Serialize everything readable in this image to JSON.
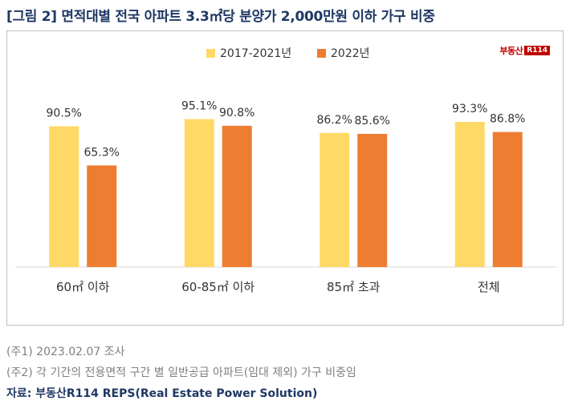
{
  "title": "[그림 2] 면적대별 전국 아파트 3.3㎡당 분양가 2,000만원 이하 가구 비중",
  "logo": {
    "text": "부동산",
    "badge": "R114"
  },
  "chart_data": {
    "type": "bar",
    "categories": [
      "60㎡ 이하",
      "60-85㎡ 이하",
      "85㎡ 초과",
      "전체"
    ],
    "series": [
      {
        "name": "2017-2021년",
        "values": [
          90.5,
          95.1,
          86.2,
          93.3
        ],
        "labels": [
          "90.5%",
          "95.1%",
          "86.2%",
          "93.3%"
        ],
        "color": "#FFD966"
      },
      {
        "name": "2022년",
        "values": [
          65.3,
          90.8,
          85.6,
          86.8
        ],
        "labels": [
          "65.3%",
          "90.8%",
          "85.6%",
          "86.8%"
        ],
        "color": "#ED7D31"
      }
    ],
    "ylim": [
      0,
      100
    ],
    "grid": false,
    "legend": "top-center"
  },
  "notes": [
    "(주1) 2023.02.07  조사",
    "(주2) 각 기간의 전용면적 구간 별 일반공급 아파트(임대 제외) 가구 비중임"
  ],
  "source": "자료: 부동산R114 REPS(Real Estate Power Solution)"
}
